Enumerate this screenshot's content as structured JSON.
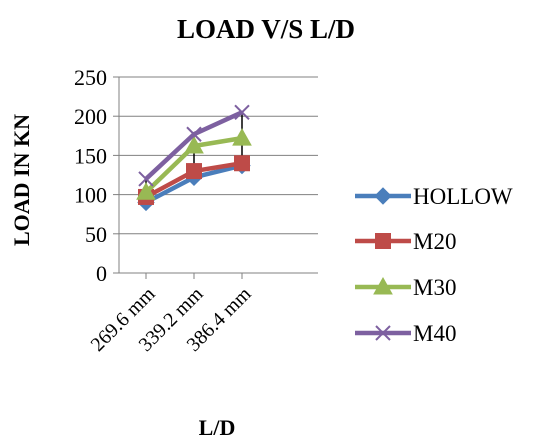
{
  "chart_data": {
    "type": "line",
    "title": "LOAD V/S L/D",
    "xlabel": "L/D",
    "ylabel": "LOAD IN KN",
    "categories": [
      "269.6 mm",
      "339.2 mm",
      "386.4 mm"
    ],
    "ylim": [
      0,
      250
    ],
    "yticks": [
      0,
      50,
      100,
      150,
      200,
      250
    ],
    "grid": true,
    "legend_position": "right",
    "error_bars": "high-low lines",
    "series": [
      {
        "name": "HOLLOW",
        "values": [
          90,
          122,
          137
        ],
        "color": "#4a7ebb",
        "marker": "diamond"
      },
      {
        "name": "M20",
        "values": [
          97,
          130,
          140
        ],
        "color": "#be4b48",
        "marker": "square"
      },
      {
        "name": "M30",
        "values": [
          103,
          162,
          172
        ],
        "color": "#98b954",
        "marker": "triangle"
      },
      {
        "name": "M40",
        "values": [
          120,
          177,
          205
        ],
        "color": "#7d60a0",
        "marker": "x"
      }
    ]
  }
}
